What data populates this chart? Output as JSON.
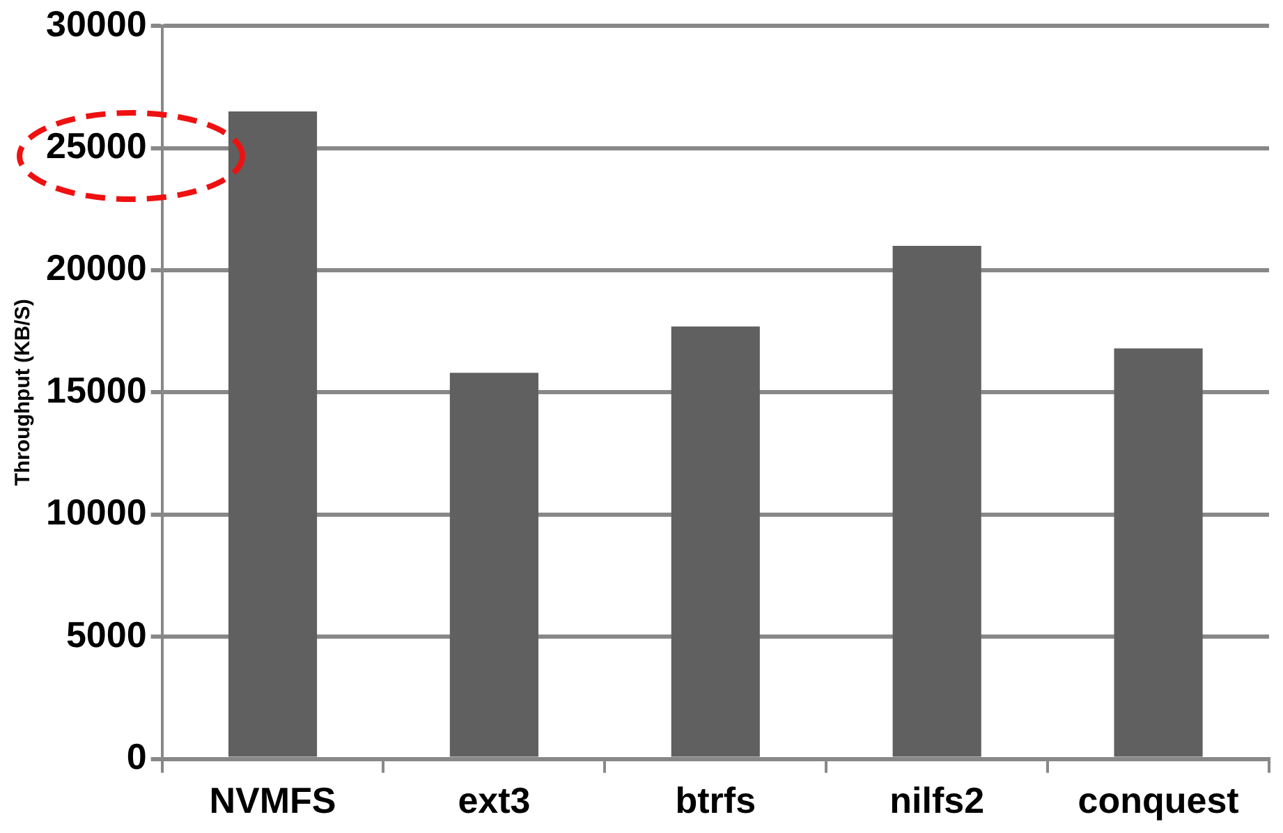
{
  "chart_data": {
    "type": "bar",
    "ylabel": "Throughput (KB/S)",
    "categories": [
      "NVMFS",
      "ext3",
      "btrfs",
      "nilfs2",
      "conquest"
    ],
    "values": [
      26500,
      15800,
      17700,
      21000,
      16800
    ],
    "color": "#606060",
    "ylim": [
      0,
      30000
    ],
    "yticks": [
      0,
      5000,
      10000,
      15000,
      20000,
      25000,
      30000
    ],
    "grid": "y"
  }
}
